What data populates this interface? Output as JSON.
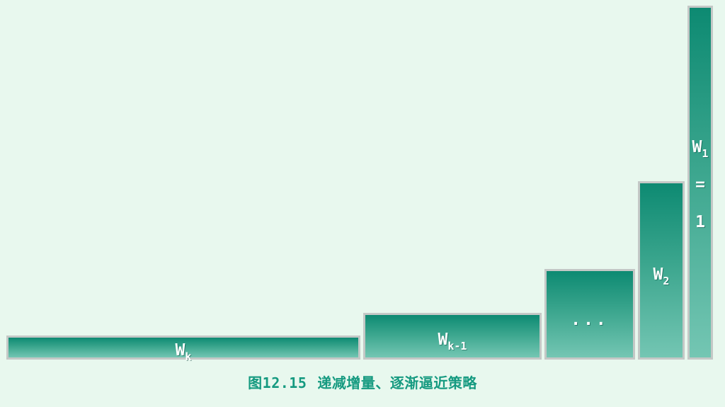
{
  "diagram": {
    "bars": [
      {
        "id": "wk",
        "label_main": "W",
        "label_sub": "k"
      },
      {
        "id": "wk-1",
        "label_main": "W",
        "label_sub": "k-1"
      },
      {
        "id": "dots",
        "label_main": "...",
        "label_sub": ""
      },
      {
        "id": "w2",
        "label_main": "W",
        "label_sub": "2"
      },
      {
        "id": "w1",
        "label_main": "W",
        "label_sub": "1",
        "label_eq": "=",
        "label_value": "1"
      }
    ],
    "colors": {
      "background": "#e8f8ee",
      "bar_top": "#0d8a72",
      "bar_bottom": "#74c6b3",
      "bar_border": "#c4c8c6",
      "caption": "#159a80"
    }
  },
  "caption": {
    "figure_number": "图12.15",
    "title": "递减增量、逐渐逼近策略"
  }
}
